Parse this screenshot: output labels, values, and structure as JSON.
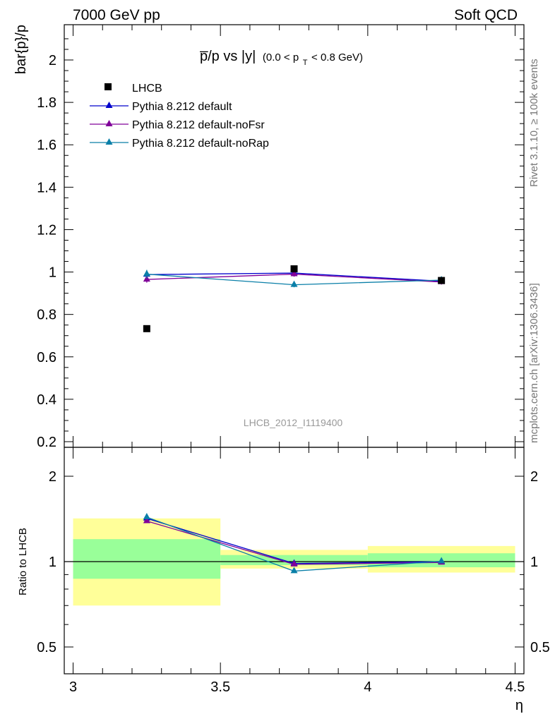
{
  "header": {
    "left": "7000 GeV pp",
    "right": "Soft QCD"
  },
  "side_labels": {
    "rivet": "Rivet 3.1.10, ≥ 100k events",
    "mcplots": "mcplots.cern.ch [arXiv:1306.3436]"
  },
  "chart_data": [
    {
      "type": "scatter",
      "title_main": "p̅/p vs |y|",
      "title_cut": "(0.0 < p",
      "title_cut_sub": "T",
      "title_cut_end": " < 0.8 GeV)",
      "ylabel": "bar{p}/p",
      "analysis_label": "LHCB_2012_I1119400",
      "ylim": [
        0.18,
        2.18
      ],
      "xlim": [
        2.97,
        4.53
      ],
      "yticks": [
        0.2,
        0.4,
        0.6,
        0.8,
        1,
        1.2,
        1.4,
        1.6,
        1.8,
        2
      ],
      "ytick_labels": [
        "0.2",
        "0.4",
        "0.6",
        "0.8",
        "1",
        "1.2",
        "1.4",
        "1.6",
        "1.8",
        "2"
      ],
      "legend_position": "top-left",
      "data": {
        "name": "LHCB",
        "x": [
          3.25,
          3.75,
          4.25
        ],
        "y": [
          0.733,
          1.015,
          0.96
        ],
        "color": "#000000"
      },
      "series": [
        {
          "name": "Pythia 8.212 default",
          "color": "#0000cc",
          "x": [
            3.25,
            3.75,
            4.25
          ],
          "y": [
            0.988,
            0.995,
            0.957
          ],
          "err": [
            0.015,
            0.012,
            0.012
          ]
        },
        {
          "name": "Pythia 8.212 default-noFsr",
          "color": "#800099",
          "x": [
            3.25,
            3.75,
            4.25
          ],
          "y": [
            0.965,
            0.99,
            0.953
          ],
          "err": [
            0.015,
            0.012,
            0.012
          ]
        },
        {
          "name": "Pythia 8.212 default-noRap",
          "color": "#0a7fa8",
          "x": [
            3.25,
            3.75,
            4.25
          ],
          "y": [
            0.99,
            0.94,
            0.962
          ],
          "err": [
            0.02,
            0.012,
            0.015
          ]
        }
      ]
    },
    {
      "type": "line",
      "ylabel": "Ratio to LHCB",
      "xlabel": "η",
      "scale": "log",
      "ylim": [
        0.4,
        2.35
      ],
      "yticks": [
        0.5,
        1,
        2
      ],
      "ytick_labels": [
        "0.5",
        "1",
        "2"
      ],
      "xticks": [
        3,
        3.5,
        4,
        4.5
      ],
      "xtick_labels": [
        "3",
        "3.5",
        "4",
        "4.5"
      ],
      "bands": [
        {
          "x0": 3.0,
          "x1": 3.5,
          "yellow": [
            0.7,
            1.42
          ],
          "green": [
            0.87,
            1.2
          ]
        },
        {
          "x0": 3.5,
          "x1": 4.0,
          "yellow": [
            0.945,
            1.1
          ],
          "green": [
            0.972,
            1.055
          ]
        },
        {
          "x0": 4.0,
          "x1": 4.5,
          "yellow": [
            0.915,
            1.135
          ],
          "green": [
            0.955,
            1.07
          ]
        }
      ],
      "series": [
        {
          "name": "Pythia 8.212 default",
          "color": "#0000cc",
          "x": [
            3.25,
            3.75,
            4.25
          ],
          "y": [
            1.42,
            0.985,
            1.0
          ]
        },
        {
          "name": "Pythia 8.212 default-noFsr",
          "color": "#800099",
          "x": [
            3.25,
            3.75,
            4.25
          ],
          "y": [
            1.39,
            0.978,
            0.993
          ]
        },
        {
          "name": "Pythia 8.212 default-noRap",
          "color": "#0a7fa8",
          "x": [
            3.25,
            3.75,
            4.25
          ],
          "y": [
            1.435,
            0.926,
            1.003
          ]
        }
      ]
    }
  ]
}
